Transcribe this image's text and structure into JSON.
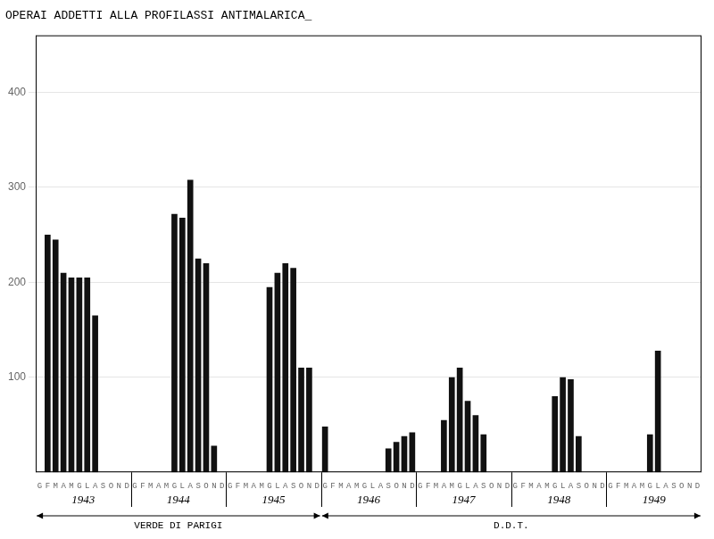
{
  "chart_data": {
    "type": "bar",
    "title": "OPERAI ADDETTI ALLA PROFILASSI ANTIMALARICA_",
    "color": "#111111",
    "ylim": [
      0,
      460
    ],
    "yticks": [
      100,
      200,
      300,
      400
    ],
    "grid": true,
    "groups": [
      {
        "name": "1943",
        "categories": [
          "G",
          "F",
          "M",
          "A",
          "M",
          "G",
          "L",
          "A",
          "S",
          "O",
          "N",
          "D"
        ],
        "values": [
          0,
          250,
          245,
          210,
          205,
          205,
          205,
          165,
          0,
          0,
          0,
          0
        ]
      },
      {
        "name": "1944",
        "categories": [
          "G",
          "F",
          "M",
          "A",
          "M",
          "G",
          "L",
          "A",
          "S",
          "O",
          "N",
          "D"
        ],
        "values": [
          0,
          0,
          0,
          0,
          0,
          272,
          268,
          308,
          225,
          220,
          28,
          0
        ]
      },
      {
        "name": "1945",
        "categories": [
          "G",
          "F",
          "M",
          "A",
          "M",
          "G",
          "L",
          "A",
          "S",
          "O",
          "N",
          "D"
        ],
        "values": [
          0,
          0,
          0,
          0,
          0,
          195,
          210,
          220,
          215,
          110,
          110,
          0
        ]
      },
      {
        "name": "1946",
        "categories": [
          "G",
          "F",
          "M",
          "A",
          "M",
          "G",
          "L",
          "A",
          "S",
          "O",
          "N",
          "D"
        ],
        "values": [
          48,
          0,
          0,
          0,
          0,
          0,
          0,
          0,
          25,
          32,
          38,
          42
        ]
      },
      {
        "name": "1947",
        "categories": [
          "G",
          "F",
          "M",
          "A",
          "M",
          "G",
          "L",
          "A",
          "S",
          "O",
          "N",
          "D"
        ],
        "values": [
          0,
          0,
          0,
          55,
          100,
          110,
          75,
          60,
          40,
          0,
          0,
          0
        ]
      },
      {
        "name": "1948",
        "categories": [
          "G",
          "F",
          "M",
          "A",
          "M",
          "G",
          "L",
          "A",
          "S",
          "O",
          "N",
          "D"
        ],
        "values": [
          0,
          0,
          0,
          0,
          0,
          80,
          100,
          98,
          38,
          0,
          0,
          0
        ]
      },
      {
        "name": "1949",
        "categories": [
          "G",
          "F",
          "M",
          "A",
          "M",
          "G",
          "L",
          "A",
          "S",
          "O",
          "N",
          "D"
        ],
        "values": [
          0,
          0,
          0,
          0,
          0,
          40,
          128,
          0,
          0,
          0,
          0,
          0
        ]
      }
    ],
    "annotations": [
      {
        "text": "VERDE DI PARIGI",
        "from": "1943",
        "to": "1945"
      },
      {
        "text": "D.D.T.",
        "from": "1946",
        "to": "1949"
      }
    ]
  }
}
